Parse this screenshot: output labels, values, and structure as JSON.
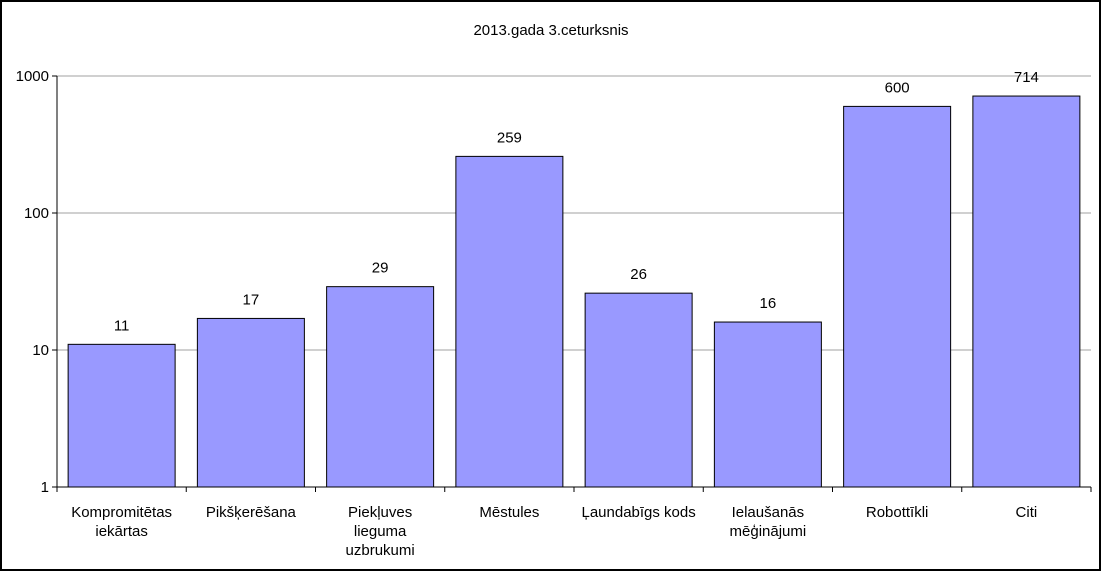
{
  "chart_data": {
    "type": "bar",
    "title": "2013.gada 3.ceturksnis",
    "xlabel": "",
    "ylabel": "",
    "y_scale": "log",
    "ylim": [
      1,
      1000
    ],
    "y_ticks": [
      "1",
      "10",
      "100",
      "1000"
    ],
    "grid": true,
    "legend": "none",
    "bar_color": "#9999ff",
    "categories": [
      [
        "Kompromitētas",
        "iekārtas"
      ],
      [
        "Pikšķerēšana"
      ],
      [
        "Piekļuves",
        "lieguma",
        "uzbrukumi"
      ],
      [
        "Mēstules"
      ],
      [
        "Ļaundabīgs kods"
      ],
      [
        "Ielaušanās",
        "mēģinājumi"
      ],
      [
        "Robottīkli"
      ],
      [
        "Citi"
      ]
    ],
    "values": [
      11,
      17,
      29,
      259,
      26,
      16,
      600,
      714
    ],
    "data_labels": [
      "11",
      "17",
      "29",
      "259",
      "26",
      "16",
      "600",
      "714"
    ]
  }
}
